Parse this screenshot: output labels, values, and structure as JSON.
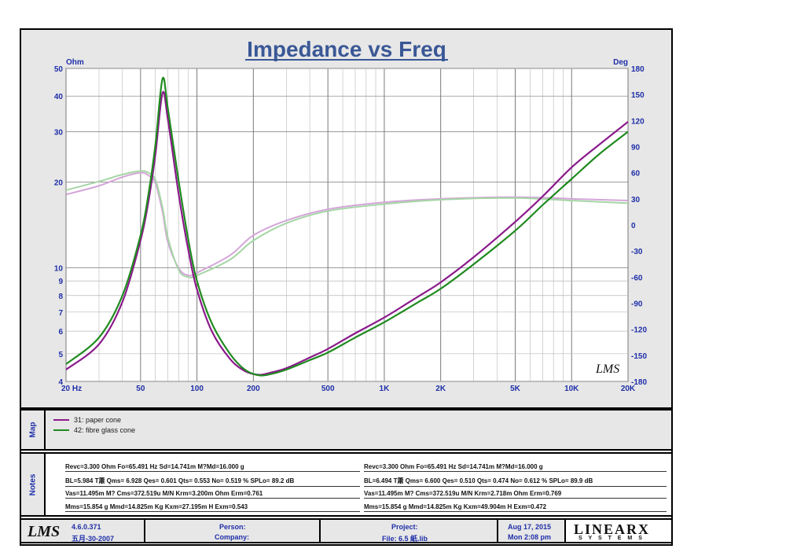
{
  "chart_data": {
    "type": "line",
    "title": "Impedance vs Freq",
    "left_unit": "Ohm",
    "right_unit": "Deg",
    "x_scale": "log",
    "x_range": [
      20,
      20000
    ],
    "x_ticks": [
      20,
      50,
      100,
      200,
      500,
      1000,
      2000,
      5000,
      10000,
      20000
    ],
    "x_tick_labels": [
      "20  Hz",
      "50",
      "100",
      "200",
      "500",
      "1K",
      "2K",
      "5K",
      "10K",
      "20K"
    ],
    "y_left_scale": "log",
    "y_left_range": [
      4,
      50
    ],
    "y_left_ticks": [
      4,
      5,
      6,
      7,
      8,
      9,
      10,
      20,
      30,
      40,
      50
    ],
    "y_right_range": [
      -180,
      180
    ],
    "y_right_ticks": [
      180,
      150,
      120,
      90,
      60,
      30,
      0,
      -30,
      -60,
      -90,
      -120,
      -150,
      -180
    ],
    "grid": true,
    "series": [
      {
        "name": "31: paper cone",
        "kind": "impedance",
        "color": "#8b1a8b",
        "points": [
          [
            20,
            4.4
          ],
          [
            30,
            5.4
          ],
          [
            40,
            7.6
          ],
          [
            50,
            12.5
          ],
          [
            55,
            17
          ],
          [
            60,
            25
          ],
          [
            65.491,
            41
          ],
          [
            70,
            33
          ],
          [
            80,
            18
          ],
          [
            90,
            11.5
          ],
          [
            100,
            8.4
          ],
          [
            120,
            6
          ],
          [
            150,
            4.8
          ],
          [
            180,
            4.35
          ],
          [
            215,
            4.22
          ],
          [
            250,
            4.3
          ],
          [
            300,
            4.45
          ],
          [
            400,
            4.85
          ],
          [
            500,
            5.2
          ],
          [
            700,
            5.9
          ],
          [
            1000,
            6.7
          ],
          [
            1500,
            7.9
          ],
          [
            2000,
            8.9
          ],
          [
            3000,
            10.9
          ],
          [
            5000,
            14.5
          ],
          [
            7000,
            17.8
          ],
          [
            10000,
            22.5
          ],
          [
            14000,
            27
          ],
          [
            20000,
            32.5
          ]
        ]
      },
      {
        "name": "42: fibre glass cone",
        "kind": "impedance",
        "color": "#1f8a1f",
        "points": [
          [
            20,
            4.6
          ],
          [
            30,
            5.7
          ],
          [
            40,
            8
          ],
          [
            50,
            13
          ],
          [
            55,
            18
          ],
          [
            60,
            27
          ],
          [
            65.491,
            46
          ],
          [
            70,
            36
          ],
          [
            80,
            20
          ],
          [
            90,
            12.5
          ],
          [
            100,
            9
          ],
          [
            120,
            6.4
          ],
          [
            150,
            5
          ],
          [
            180,
            4.4
          ],
          [
            215,
            4.2
          ],
          [
            250,
            4.25
          ],
          [
            300,
            4.4
          ],
          [
            400,
            4.75
          ],
          [
            500,
            5.05
          ],
          [
            700,
            5.7
          ],
          [
            1000,
            6.45
          ],
          [
            1500,
            7.55
          ],
          [
            2000,
            8.45
          ],
          [
            3000,
            10.3
          ],
          [
            5000,
            13.5
          ],
          [
            7000,
            16.6
          ],
          [
            10000,
            20.5
          ],
          [
            14000,
            25
          ],
          [
            20000,
            30
          ]
        ]
      },
      {
        "name": "31: paper cone phase",
        "kind": "phase",
        "color": "#d4a6d9",
        "points": [
          [
            20,
            35
          ],
          [
            30,
            45
          ],
          [
            40,
            55
          ],
          [
            50,
            60
          ],
          [
            55,
            57
          ],
          [
            60,
            48
          ],
          [
            65.491,
            15
          ],
          [
            70,
            -20
          ],
          [
            80,
            -50
          ],
          [
            90,
            -58
          ],
          [
            100,
            -55
          ],
          [
            150,
            -35
          ],
          [
            200,
            -12
          ],
          [
            300,
            5
          ],
          [
            500,
            18
          ],
          [
            1000,
            26
          ],
          [
            2000,
            30
          ],
          [
            5000,
            32
          ],
          [
            10000,
            30
          ],
          [
            20000,
            28
          ]
        ]
      },
      {
        "name": "42: fibre glass cone phase",
        "kind": "phase",
        "color": "#a6d6a6",
        "points": [
          [
            20,
            40
          ],
          [
            30,
            50
          ],
          [
            40,
            58
          ],
          [
            50,
            62
          ],
          [
            55,
            60
          ],
          [
            60,
            52
          ],
          [
            65.491,
            20
          ],
          [
            70,
            -15
          ],
          [
            80,
            -52
          ],
          [
            90,
            -60
          ],
          [
            100,
            -58
          ],
          [
            150,
            -40
          ],
          [
            200,
            -18
          ],
          [
            300,
            2
          ],
          [
            500,
            16
          ],
          [
            1000,
            24
          ],
          [
            2000,
            29
          ],
          [
            5000,
            31
          ],
          [
            10000,
            28
          ],
          [
            20000,
            25
          ]
        ]
      }
    ]
  },
  "logo_text": "LMS",
  "map": {
    "label": "Map",
    "items": [
      {
        "label": "31: paper cone",
        "color": "#8b1a8b"
      },
      {
        "label": "42: fibre glass cone",
        "color": "#1f8a1f"
      }
    ]
  },
  "notes": {
    "label": "Notes",
    "left": [
      "Revc=3.300 Ohm  Fo=65.491 Hz  Sd=14.741m M?Md=16.000 g",
      "BL=5.984 T蕭  Qms= 6.928  Qes= 0.601  Qts= 0.553  No= 0.519 %  SPLo= 89.2 dB",
      "Vas=11.495m M? Cms=372.519u M/N  Krm=3.200m Ohm  Erm=0.761",
      "Mms=15.854 g  Mmd=14.825m Kg  Kxm=27.195m H  Exm=0.543"
    ],
    "right": [
      "Revc=3.300 Ohm  Fo=65.491 Hz  Sd=14.741m M?Md=16.000 g",
      "BL=6.494 T蕭  Qms= 6.600  Qes= 0.510  Qts= 0.474  No= 0.612 %  SPLo= 89.9 dB",
      "Vas=11.495m M? Cms=372.519u M/N  Krm=2.718m Ohm  Erm=0.769",
      "Mms=15.854 g  Mmd=14.825m Kg  Kxm=49.904m H  Exm=0.472"
    ]
  },
  "footer": {
    "logo": "LMS",
    "version": "4.6.0.371",
    "version_date": "五月-30-2007",
    "person_label": "Person:",
    "company_label": "Company:",
    "project_label": "Project:",
    "file_label": "File: 6.5 紙.lib",
    "date": "Aug 17, 2015",
    "time": "Mon  2:08 pm",
    "brand": "LINEARX",
    "brand_sub": "S Y S T E M S"
  }
}
